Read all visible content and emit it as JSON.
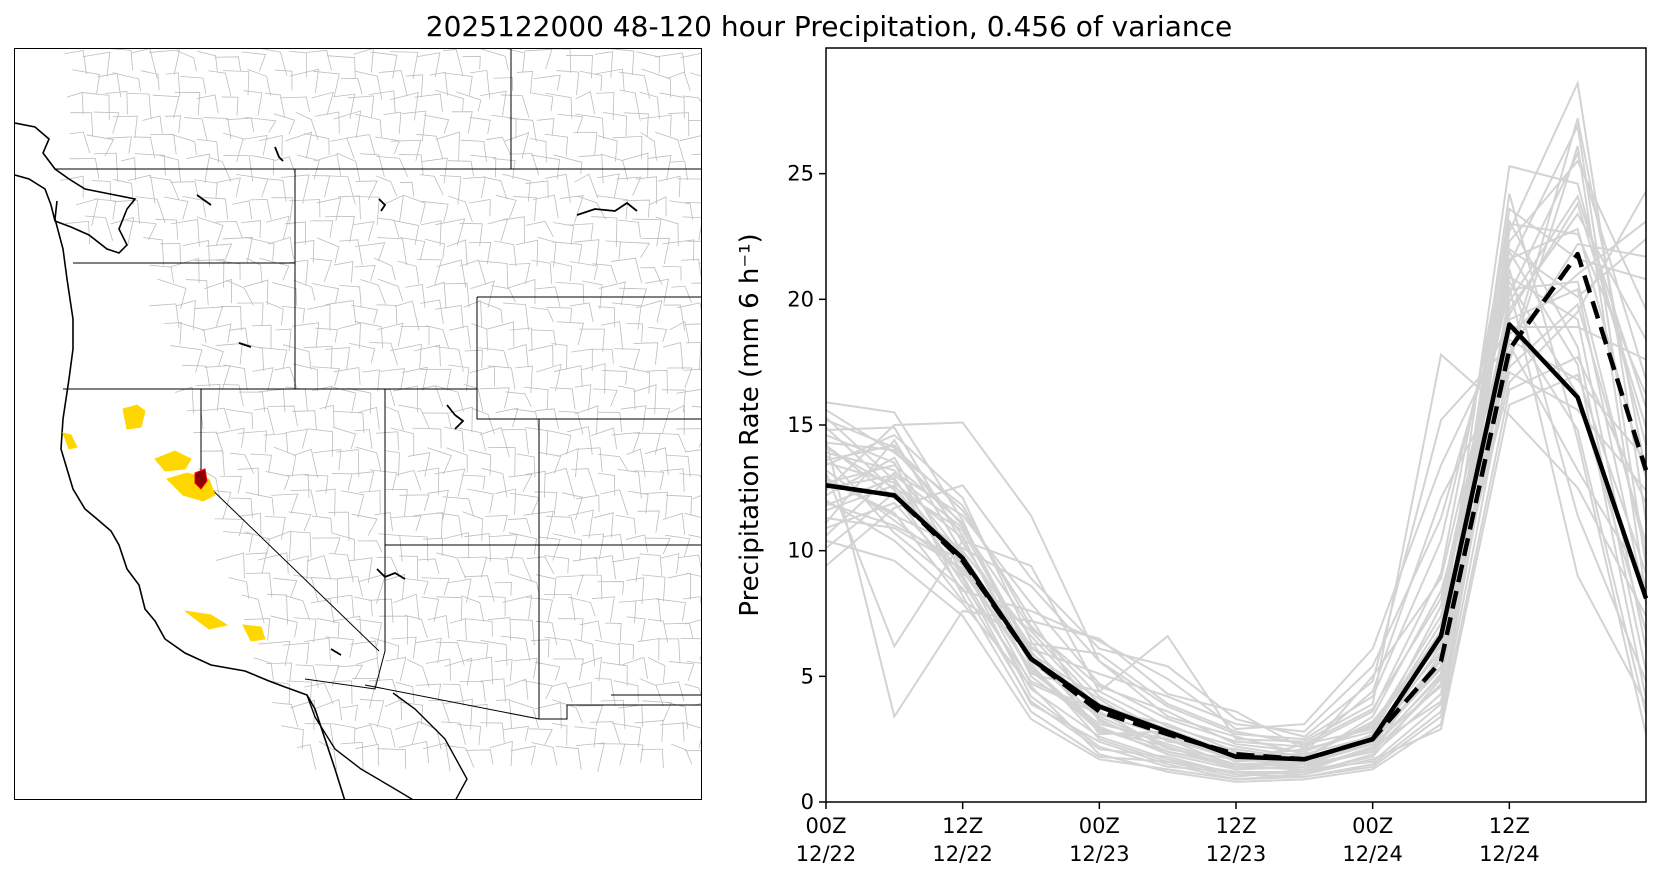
{
  "title": "2025122000 48-120 hour Precipitation, 0.456 of variance",
  "colors": {
    "member": "#d3d3d3",
    "mean": "#000000",
    "highlight_basin": "#ffd700",
    "selected_basin": "#8b0000",
    "basin_lines": "#bdbdbd",
    "borders": "#000000"
  },
  "map": {
    "description_icon": "basin-map-icon"
  },
  "chart_data": {
    "type": "line",
    "ylabel": "Precipitation Rate (mm 6 h⁻¹)",
    "ylim": [
      0,
      30
    ],
    "yticks": [
      0,
      5,
      10,
      15,
      20,
      25
    ],
    "xlim": [
      0,
      12
    ],
    "xticks": [
      {
        "x": 0,
        "line1": "00Z",
        "line2": "12/22"
      },
      {
        "x": 2,
        "line1": "12Z",
        "line2": "12/22"
      },
      {
        "x": 4,
        "line1": "00Z",
        "line2": "12/23"
      },
      {
        "x": 6,
        "line1": "12Z",
        "line2": "12/23"
      },
      {
        "x": 8,
        "line1": "00Z",
        "line2": "12/24"
      },
      {
        "x": 10,
        "line1": "12Z",
        "line2": "12/24"
      }
    ],
    "x": [
      0,
      1,
      2,
      3,
      4,
      5,
      6,
      7,
      8,
      9,
      10,
      11,
      12
    ],
    "series": [
      {
        "style": "solid",
        "values": [
          12.6,
          12.2,
          9.7,
          5.7,
          3.8,
          2.8,
          1.8,
          1.7,
          2.5,
          6.6,
          19.0,
          16.1,
          8.1
        ]
      },
      {
        "style": "dashed",
        "values": [
          12.6,
          12.2,
          9.6,
          5.7,
          3.6,
          2.7,
          1.9,
          1.7,
          2.5,
          5.6,
          18.0,
          21.8,
          13.2
        ]
      }
    ],
    "members": [
      [
        15.9,
        15.5,
        11.2,
        5.4,
        2.9,
        2.2,
        1.4,
        1.6,
        2.3,
        5.6,
        22.7,
        28.6,
        11.2
      ],
      [
        14.8,
        14.9,
        10.3,
        6.2,
        3.5,
        2.6,
        1.8,
        2.1,
        2.8,
        7.1,
        21.4,
        26.9,
        9.4
      ],
      [
        13.9,
        13.2,
        9.8,
        5.1,
        4.4,
        3.0,
        2.2,
        1.8,
        3.1,
        6.3,
        25.3,
        24.6,
        14.2
      ],
      [
        15.2,
        14.1,
        11.6,
        7.3,
        3.2,
        2.3,
        1.5,
        1.4,
        2.1,
        5.1,
        20.2,
        25.8,
        16.8
      ],
      [
        12.2,
        13.7,
        9.1,
        6.8,
        3.9,
        2.9,
        1.9,
        1.9,
        2.6,
        7.8,
        19.6,
        23.4,
        18.4
      ],
      [
        14.1,
        12.5,
        10.8,
        5.9,
        4.1,
        2.4,
        2.1,
        1.7,
        3.4,
        8.4,
        17.9,
        22.2,
        21.7
      ],
      [
        13.4,
        14.6,
        12.1,
        6.4,
        2.7,
        2.8,
        1.6,
        2.3,
        2.9,
        6.8,
        18.6,
        21.0,
        23.1
      ],
      [
        11.8,
        12.9,
        8.7,
        4.8,
        3.6,
        2.1,
        1.7,
        1.5,
        2.0,
        5.9,
        16.7,
        19.5,
        24.3
      ],
      [
        10.6,
        13.1,
        11.4,
        7.9,
        4.7,
        3.3,
        2.4,
        2.2,
        3.6,
        9.1,
        23.1,
        18.1,
        5.2
      ],
      [
        12.9,
        11.4,
        10.1,
        8.6,
        5.6,
        3.8,
        2.7,
        2.5,
        4.2,
        10.4,
        21.9,
        17.4,
        4.1
      ],
      [
        11.3,
        10.9,
        9.3,
        6.1,
        5.1,
        4.2,
        3.1,
        2.8,
        5.4,
        11.3,
        20.7,
        16.2,
        6.8
      ],
      [
        10.1,
        12.3,
        8.4,
        7.6,
        6.4,
        4.9,
        2.9,
        3.1,
        6.1,
        13.4,
        19.1,
        14.8,
        3.5
      ],
      [
        9.4,
        11.7,
        12.6,
        8.9,
        6.1,
        5.4,
        3.3,
        2.6,
        4.8,
        15.2,
        18.2,
        13.2,
        8.7
      ],
      [
        13.1,
        6.2,
        10.4,
        9.4,
        4.4,
        6.6,
        2.5,
        2.4,
        3.9,
        17.8,
        15.4,
        12.5,
        7.4
      ],
      [
        14.4,
        3.4,
        7.6,
        7.2,
        6.5,
        4.3,
        3.6,
        2.1,
        4.4,
        12.1,
        17.3,
        19.8,
        10.3
      ],
      [
        12.4,
        15.0,
        15.1,
        11.4,
        5.6,
        3.4,
        2.6,
        1.9,
        5.0,
        8.9,
        20.4,
        20.7,
        9.9
      ],
      [
        15.3,
        12.8,
        9.5,
        4.2,
        2.2,
        1.4,
        1.2,
        1.1,
        1.9,
        4.3,
        21.6,
        22.8,
        12.9
      ],
      [
        14.6,
        13.5,
        8.2,
        3.6,
        1.8,
        1.6,
        1.0,
        1.3,
        1.6,
        3.9,
        19.9,
        24.1,
        15.7
      ],
      [
        13.6,
        14.2,
        10.6,
        5.0,
        3.0,
        1.9,
        1.3,
        1.4,
        2.0,
        4.7,
        22.3,
        25.5,
        19.6
      ],
      [
        12.7,
        13.4,
        11.1,
        5.8,
        3.3,
        2.0,
        1.5,
        1.6,
        2.4,
        5.3,
        23.6,
        21.6,
        20.8
      ],
      [
        11.6,
        12.6,
        9.0,
        4.5,
        2.6,
        1.7,
        1.1,
        1.2,
        1.8,
        4.9,
        22.0,
        20.1,
        22.4
      ],
      [
        10.9,
        11.9,
        8.9,
        3.9,
        2.4,
        1.5,
        0.9,
        1.0,
        1.5,
        3.6,
        18.9,
        18.9,
        17.6
      ],
      [
        12.0,
        10.4,
        7.9,
        4.6,
        1.9,
        1.2,
        0.8,
        0.9,
        1.3,
        3.1,
        16.4,
        17.7,
        11.9
      ],
      [
        13.2,
        11.2,
        9.2,
        5.3,
        2.8,
        2.5,
        1.4,
        1.3,
        2.2,
        4.0,
        18.4,
        16.8,
        13.6
      ],
      [
        14.2,
        12.1,
        10.0,
        6.6,
        3.7,
        3.1,
        2.0,
        1.5,
        2.7,
        6.0,
        17.1,
        15.6,
        12.4
      ],
      [
        15.6,
        13.9,
        11.8,
        7.0,
        4.2,
        2.7,
        1.6,
        1.8,
        3.2,
        6.5,
        20.9,
        19.2,
        6.1
      ],
      [
        11.1,
        14.4,
        9.9,
        5.6,
        3.4,
        2.2,
        1.3,
        1.4,
        2.5,
        5.4,
        24.2,
        14.4,
        2.7
      ],
      [
        13.8,
        10.7,
        8.5,
        4.0,
        2.1,
        1.8,
        1.1,
        1.0,
        1.4,
        3.4,
        17.5,
        26.1,
        8.2
      ],
      [
        12.5,
        13.0,
        10.9,
        6.9,
        4.6,
        3.6,
        2.3,
        2.0,
        3.0,
        7.4,
        21.2,
        11.4,
        4.8
      ],
      [
        14.9,
        12.4,
        9.4,
        5.2,
        3.1,
        2.5,
        1.7,
        1.6,
        2.6,
        5.7,
        19.4,
        23.8,
        14.9
      ],
      [
        10.4,
        9.6,
        7.4,
        3.3,
        1.7,
        1.3,
        0.9,
        1.1,
        1.7,
        2.9,
        15.8,
        17.0,
        9.1
      ],
      [
        12.8,
        11.5,
        8.0,
        6.3,
        5.9,
        3.9,
        2.8,
        2.3,
        3.7,
        8.1,
        20.5,
        9.0,
        3.9
      ],
      [
        13.5,
        12.7,
        10.5,
        5.5,
        2.5,
        1.6,
        1.2,
        1.2,
        2.2,
        5.0,
        23.0,
        22.6,
        16.2
      ],
      [
        11.9,
        11.0,
        9.6,
        4.7,
        3.5,
        2.6,
        1.8,
        1.7,
        2.4,
        6.2,
        17.7,
        27.2,
        13.1
      ],
      [
        14.3,
        14.0,
        11.0,
        6.0,
        2.9,
        2.0,
        1.4,
        1.5,
        2.3,
        4.6,
        19.2,
        20.4,
        7.9
      ]
    ]
  }
}
